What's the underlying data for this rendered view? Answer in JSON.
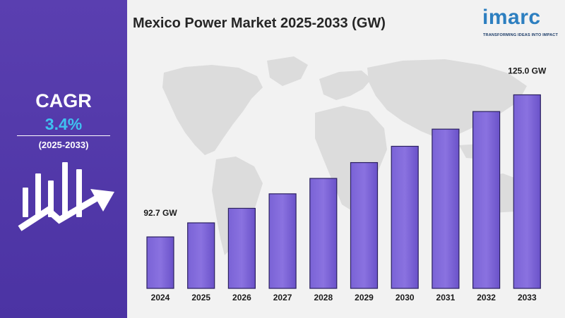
{
  "side_panel": {
    "cagr_label": "CAGR",
    "cagr_value": "3.4%",
    "cagr_period": "(2025-2033)",
    "icon": "growth-bars-arrow-icon",
    "background_color": "#4b33a3",
    "value_color": "#3fc1f0"
  },
  "brand": {
    "logo_text": "imarc",
    "tagline": "TRANSFORMING IDEAS INTO IMPACT",
    "logo_color": "#2d7fc0"
  },
  "chart_data": {
    "type": "bar",
    "title": "Mexico Power Market 2025-2033 (GW)",
    "categories": [
      "2024",
      "2025",
      "2026",
      "2027",
      "2028",
      "2029",
      "2030",
      "2031",
      "2032",
      "2033"
    ],
    "values": [
      92.7,
      95.9,
      99.2,
      102.5,
      106.0,
      109.6,
      113.3,
      117.2,
      121.2,
      125.0
    ],
    "data_labels": [
      {
        "index": 0,
        "text": "92.7 GW"
      },
      {
        "index": 9,
        "text": "125.0 GW"
      }
    ],
    "ylim": [
      81,
      127
    ],
    "xlabel": "",
    "ylabel": "",
    "grid": false,
    "bar_color": "#8a72e0",
    "background_map": "world-map"
  }
}
